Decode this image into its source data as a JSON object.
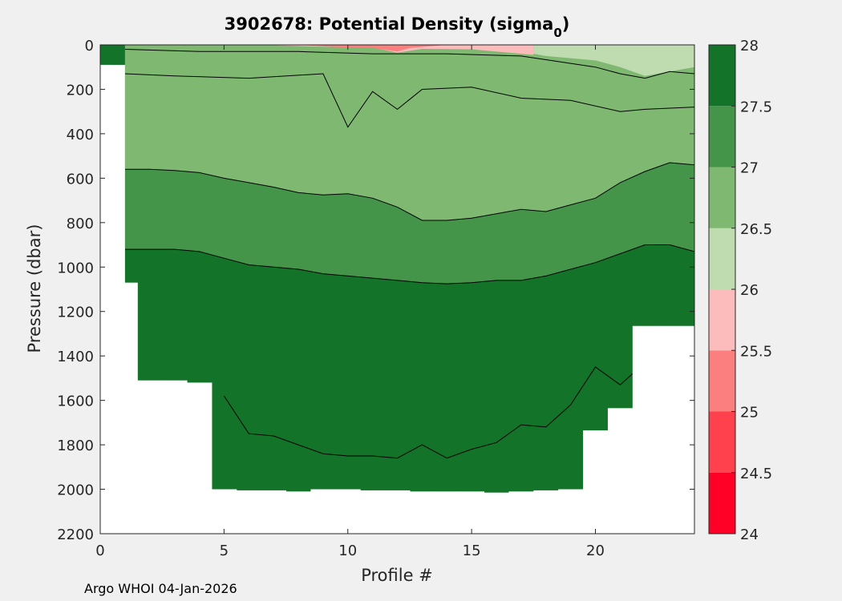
{
  "chart_data": {
    "type": "heatmap",
    "title_prefix": "3902678: Potential Density (sigma",
    "title_subscript": "0",
    "title_suffix": ")",
    "xlabel": "Profile #",
    "ylabel": "Pressure (dbar)",
    "xlim": [
      0,
      24
    ],
    "ylim": [
      0,
      2200
    ],
    "y_reversed": true,
    "x_ticks": [
      0,
      5,
      10,
      15,
      20
    ],
    "y_ticks": [
      0,
      200,
      400,
      600,
      800,
      1000,
      1200,
      1400,
      1600,
      1800,
      2000,
      2200
    ],
    "colorbar": {
      "levels": [
        24,
        24.5,
        25,
        25.5,
        26,
        26.5,
        27,
        27.5,
        28
      ],
      "tick_labels": [
        "24",
        "24.5",
        "25",
        "25.5",
        "26",
        "26.5",
        "27",
        "27.5",
        "28"
      ],
      "colors": [
        "#ff0026",
        "#ff414e",
        "#fc7f7f",
        "#fdbcbc",
        "#bedcb0",
        "#7fb871",
        "#44954a",
        "#137328"
      ]
    },
    "isopycnals": [
      {
        "sigma": 27.0,
        "profile": [
          1,
          2,
          3,
          4,
          5,
          6,
          7,
          8,
          9,
          10,
          11,
          12,
          13,
          14,
          15,
          16,
          17,
          18,
          19,
          20,
          21,
          22,
          23,
          24
        ],
        "pressure": [
          560,
          560,
          565,
          575,
          600,
          620,
          640,
          665,
          675,
          670,
          690,
          730,
          790,
          790,
          780,
          760,
          740,
          750,
          720,
          690,
          620,
          570,
          530,
          540
        ]
      },
      {
        "sigma": 27.5,
        "profile": [
          1,
          2,
          3,
          4,
          5,
          6,
          7,
          8,
          9,
          10,
          11,
          12,
          13,
          14,
          15,
          16,
          17,
          18,
          19,
          20,
          21,
          22,
          23,
          24
        ],
        "pressure": [
          920,
          920,
          920,
          930,
          960,
          990,
          1000,
          1010,
          1030,
          1040,
          1050,
          1060,
          1070,
          1075,
          1070,
          1060,
          1060,
          1040,
          1010,
          980,
          940,
          900,
          900,
          930
        ]
      },
      {
        "sigma": 27.75,
        "profile": [
          5,
          6,
          7,
          8,
          9,
          10,
          11,
          12,
          13,
          14,
          15,
          16,
          17,
          18,
          19,
          20,
          21,
          22
        ],
        "pressure": [
          1580,
          1750,
          1760,
          1800,
          1840,
          1850,
          1850,
          1860,
          1800,
          1860,
          1820,
          1790,
          1710,
          1720,
          1620,
          1450,
          1530,
          1430
        ]
      }
    ],
    "data_coverage": {
      "profile_edges": [
        0.5,
        1.5,
        2.5,
        3.5,
        4.5,
        5.5,
        6.5,
        7.5,
        8.5,
        9.5,
        10.5,
        11.5,
        12.5,
        13.5,
        14.5,
        15.5,
        16.5,
        17.5,
        18.5,
        19.5,
        20.5,
        21.5,
        22.5,
        23.5
      ],
      "max_pressure": [
        90,
        1070,
        1510,
        1510,
        1520,
        2000,
        2005,
        2005,
        2010,
        2000,
        2000,
        2005,
        2005,
        2010,
        2010,
        2010,
        2015,
        2010,
        2005,
        2000,
        1735,
        1635,
        1265,
        1265
      ]
    }
  },
  "footer": "Argo WHOI 04-Jan-2026"
}
